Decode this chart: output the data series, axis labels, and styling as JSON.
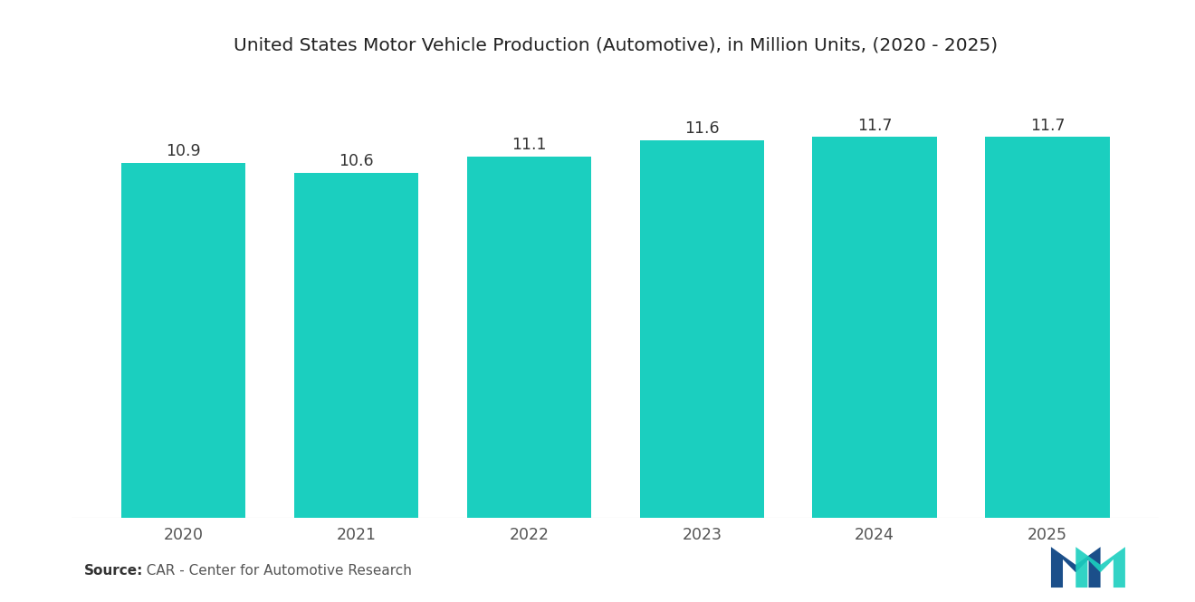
{
  "title": "United States Motor Vehicle Production (Automotive), in Million Units, (2020 - 2025)",
  "categories": [
    "2020",
    "2021",
    "2022",
    "2023",
    "2024",
    "2025"
  ],
  "values": [
    10.9,
    10.6,
    11.1,
    11.6,
    11.7,
    11.7
  ],
  "bar_color": "#1BCFBF",
  "background_color": "#FFFFFF",
  "title_fontsize": 14.5,
  "label_fontsize": 12.5,
  "tick_fontsize": 12.5,
  "source_bold": "Source:",
  "source_rest": "  CAR - Center for Automotive Research",
  "ylim": [
    0,
    13.5
  ],
  "bar_width": 0.72
}
